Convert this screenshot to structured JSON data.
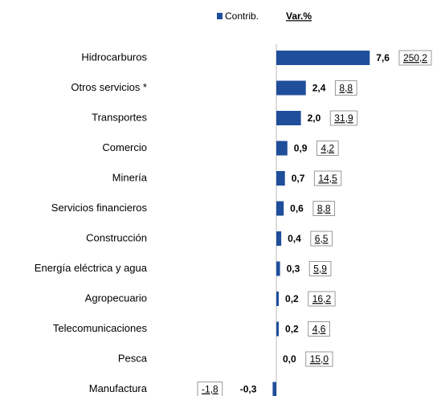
{
  "chart_data": {
    "type": "bar",
    "orientation": "horizontal",
    "categories": [
      "Hidrocarburos",
      "Otros servicios *",
      "Transportes",
      "Comercio",
      "Minería",
      "Servicios financieros",
      "Construcción",
      "Energía eléctrica y agua",
      "Agropecuario",
      "Telecomunicaciones",
      "Pesca",
      "Manufactura"
    ],
    "series": [
      {
        "name": "Contrib.",
        "color": "#1f4e9a",
        "values": [
          7.6,
          2.4,
          2.0,
          0.9,
          0.7,
          0.6,
          0.4,
          0.3,
          0.2,
          0.2,
          0.0,
          -0.3
        ],
        "value_labels": [
          "7,6",
          "2,4",
          "2,0",
          "0,9",
          "0,7",
          "0,6",
          "0,4",
          "0,3",
          "0,2",
          "0,2",
          "0,0",
          "-0,3"
        ]
      },
      {
        "name": "Var.%",
        "values": [
          250.2,
          8.8,
          31.9,
          4.2,
          14.5,
          8.8,
          6.5,
          5.9,
          16.2,
          4.6,
          15.0,
          -1.8
        ],
        "value_labels": [
          "250,2",
          "8,8",
          "31,9",
          "4,2",
          "14,5",
          "8,8",
          "6,5",
          "5,9",
          "16,2",
          "4,6",
          "15,0",
          "-1,8"
        ]
      }
    ],
    "xlim": [
      -0.5,
      8.0
    ]
  }
}
